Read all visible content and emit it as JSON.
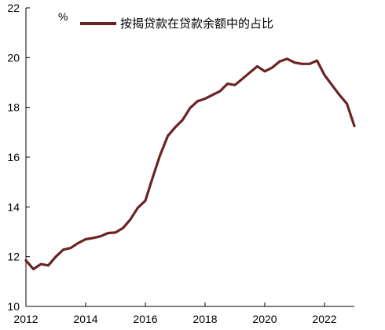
{
  "chart_data": {
    "type": "line",
    "title": "",
    "xlabel": "",
    "ylabel": "",
    "unit": "%",
    "xlim": [
      2012,
      2023
    ],
    "ylim": [
      10,
      22
    ],
    "x_ticks": [
      "2012",
      "2014",
      "2016",
      "2018",
      "2020",
      "2022"
    ],
    "y_ticks": [
      "10",
      "12",
      "14",
      "16",
      "18",
      "20",
      "22"
    ],
    "grid": false,
    "legend_position": "top-right",
    "series": [
      {
        "name": "按揭贷款在贷款余额中的占比",
        "color": "#6b2323",
        "x": [
          2012.0,
          2012.25,
          2012.5,
          2012.75,
          2013.0,
          2013.25,
          2013.5,
          2013.75,
          2014.0,
          2014.25,
          2014.5,
          2014.75,
          2015.0,
          2015.25,
          2015.5,
          2015.75,
          2016.0,
          2016.25,
          2016.5,
          2016.75,
          2017.0,
          2017.25,
          2017.5,
          2017.75,
          2018.0,
          2018.25,
          2018.5,
          2018.75,
          2019.0,
          2019.25,
          2019.5,
          2019.75,
          2020.0,
          2020.25,
          2020.5,
          2020.75,
          2021.0,
          2021.25,
          2021.5,
          2021.75,
          2022.0,
          2022.25,
          2022.5,
          2022.75,
          2023.0
        ],
        "values": [
          11.85,
          11.5,
          11.7,
          11.65,
          12.0,
          12.28,
          12.35,
          12.55,
          12.7,
          12.75,
          12.82,
          12.95,
          12.97,
          13.15,
          13.5,
          13.97,
          14.25,
          15.2,
          16.1,
          16.85,
          17.2,
          17.5,
          17.98,
          18.25,
          18.35,
          18.5,
          18.65,
          18.95,
          18.9,
          19.15,
          19.4,
          19.65,
          19.45,
          19.6,
          19.85,
          19.95,
          19.8,
          19.75,
          19.75,
          19.88,
          19.3,
          18.9,
          18.5,
          18.15,
          17.25
        ]
      }
    ]
  }
}
